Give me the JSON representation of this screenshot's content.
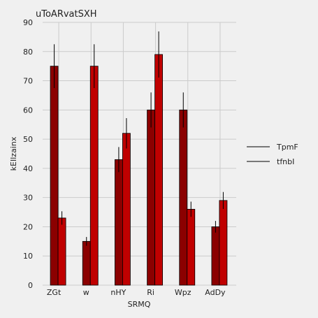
{
  "chart_data": {
    "type": "bar",
    "title": "uToARvatSXH",
    "xlabel": "SRMQ",
    "ylabel": "kEIlzainx",
    "categories": [
      "ZGt",
      "w",
      "nHY",
      "Ri",
      "Wpz",
      "AdDy"
    ],
    "ylim": [
      0,
      90
    ],
    "yticks": [
      0,
      10,
      20,
      30,
      40,
      50,
      60,
      70,
      80,
      90
    ],
    "grid": true,
    "legend_position": "right",
    "series": [
      {
        "name": "TpmF",
        "color": "#8b0000",
        "values": [
          75,
          15,
          43,
          60,
          60,
          20
        ],
        "errors": [
          7.5,
          1.5,
          4.3,
          6,
          6,
          2
        ]
      },
      {
        "name": "tfnbI",
        "color": "#c00000",
        "values": [
          23,
          75,
          52,
          79,
          26,
          29
        ],
        "errors": [
          2.3,
          7.5,
          5.2,
          7.9,
          2.6,
          2.9
        ]
      }
    ]
  }
}
